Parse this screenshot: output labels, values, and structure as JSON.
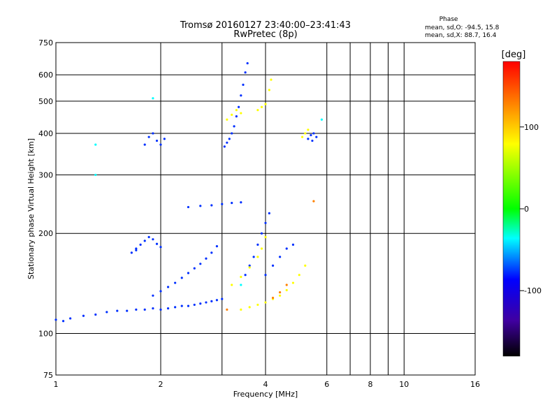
{
  "chart_data": {
    "type": "scatter",
    "title": "Tromsø 20160127 23:40:00–23:41:43",
    "subtitle": "RwPretec (8p)",
    "xlabel": "Frequency [MHz]",
    "ylabel": "Stationary phase Virtual Height [km]",
    "x_scale": "log",
    "y_scale": "log",
    "xlim": [
      1,
      16
    ],
    "ylim": [
      75,
      750
    ],
    "x_ticks": [
      1,
      2,
      4,
      6,
      8,
      10,
      16
    ],
    "y_ticks": [
      75,
      100,
      200,
      300,
      400,
      500,
      600,
      750
    ],
    "x_minor_gridlines": [
      3,
      7,
      9
    ],
    "grid": true,
    "legend": {
      "heading": "Phase",
      "lines": [
        "mean, sd,O: -94.5, 15.8",
        "mean, sd,X:  88.7, 16.4"
      ]
    },
    "colorbar": {
      "label": "[deg]",
      "range": [
        -180,
        180
      ],
      "ticks": [
        100,
        0,
        -100
      ],
      "stops": [
        "#ff0000",
        "#ff8000",
        "#ffff00",
        "#00ff00",
        "#00ffff",
        "#0000ff",
        "#4000a0",
        "#000000"
      ]
    },
    "series": [
      {
        "color": "#0030ff",
        "values": [
          [
            1.0,
            110
          ],
          [
            1.05,
            109
          ],
          [
            1.1,
            111
          ],
          [
            1.2,
            113
          ],
          [
            1.3,
            114
          ],
          [
            1.4,
            116
          ],
          [
            1.5,
            117
          ],
          [
            1.6,
            117
          ],
          [
            1.7,
            118
          ],
          [
            1.8,
            118
          ],
          [
            1.9,
            119
          ],
          [
            2.0,
            118
          ],
          [
            2.1,
            119
          ],
          [
            2.2,
            120
          ],
          [
            2.3,
            121
          ],
          [
            2.4,
            121
          ],
          [
            2.5,
            122
          ],
          [
            2.6,
            123
          ],
          [
            2.7,
            124
          ],
          [
            2.8,
            125
          ],
          [
            2.9,
            126
          ],
          [
            3.0,
            127
          ]
        ]
      },
      {
        "color": "#0030ff",
        "values": [
          [
            1.9,
            130
          ],
          [
            2.0,
            134
          ],
          [
            2.1,
            138
          ],
          [
            2.2,
            142
          ],
          [
            2.3,
            147
          ],
          [
            2.4,
            152
          ],
          [
            2.5,
            157
          ],
          [
            2.6,
            162
          ],
          [
            2.7,
            168
          ],
          [
            2.8,
            175
          ],
          [
            2.9,
            183
          ]
        ]
      },
      {
        "color": "#0030ff",
        "values": [
          [
            1.7,
            180
          ],
          [
            1.75,
            185
          ],
          [
            1.8,
            190
          ],
          [
            1.85,
            195
          ],
          [
            1.9,
            192
          ],
          [
            1.95,
            186
          ],
          [
            2.0,
            182
          ],
          [
            1.65,
            175
          ],
          [
            1.7,
            178
          ]
        ]
      },
      {
        "color": "#0030ff",
        "values": [
          [
            2.4,
            240
          ],
          [
            2.6,
            242
          ],
          [
            2.8,
            243
          ],
          [
            3.0,
            245
          ],
          [
            3.2,
            247
          ],
          [
            3.4,
            248
          ]
        ]
      },
      {
        "color": "#0030ff",
        "values": [
          [
            3.05,
            365
          ],
          [
            3.1,
            375
          ],
          [
            3.15,
            385
          ],
          [
            3.2,
            400
          ],
          [
            3.25,
            420
          ],
          [
            3.3,
            450
          ],
          [
            3.35,
            480
          ],
          [
            3.4,
            520
          ],
          [
            3.45,
            560
          ],
          [
            3.5,
            610
          ],
          [
            3.55,
            650
          ]
        ]
      },
      {
        "color": "#0030ff",
        "values": [
          [
            1.8,
            370
          ],
          [
            1.85,
            390
          ],
          [
            1.9,
            400
          ],
          [
            1.95,
            380
          ],
          [
            2.0,
            370
          ],
          [
            2.05,
            385
          ]
        ]
      },
      {
        "color": "#0030ff",
        "values": [
          [
            3.5,
            150
          ],
          [
            3.6,
            160
          ],
          [
            3.7,
            170
          ],
          [
            3.8,
            185
          ],
          [
            3.9,
            200
          ],
          [
            4.0,
            215
          ],
          [
            4.1,
            230
          ]
        ]
      },
      {
        "color": "#0030ff",
        "values": [
          [
            5.3,
            385
          ],
          [
            5.4,
            395
          ],
          [
            5.5,
            400
          ],
          [
            5.6,
            390
          ],
          [
            5.45,
            380
          ]
        ]
      },
      {
        "color": "#0030ff",
        "values": [
          [
            4.0,
            150
          ],
          [
            4.2,
            160
          ],
          [
            4.4,
            170
          ],
          [
            4.6,
            180
          ],
          [
            4.8,
            185
          ]
        ]
      },
      {
        "color": "#ffff00",
        "values": [
          [
            3.4,
            118
          ],
          [
            3.6,
            120
          ],
          [
            3.8,
            122
          ],
          [
            4.0,
            124
          ],
          [
            4.2,
            127
          ],
          [
            4.4,
            130
          ],
          [
            4.6,
            135
          ],
          [
            4.8,
            142
          ],
          [
            5.0,
            150
          ],
          [
            5.2,
            160
          ]
        ]
      },
      {
        "color": "#ffff00",
        "values": [
          [
            3.2,
            140
          ],
          [
            3.4,
            148
          ],
          [
            3.6,
            158
          ],
          [
            3.8,
            170
          ],
          [
            3.9,
            180
          ],
          [
            4.0,
            195
          ]
        ]
      },
      {
        "color": "#ffff00",
        "values": [
          [
            3.1,
            440
          ],
          [
            3.2,
            455
          ],
          [
            3.3,
            470
          ],
          [
            3.4,
            460
          ]
        ]
      },
      {
        "color": "#ffff00",
        "values": [
          [
            3.8,
            470
          ],
          [
            3.9,
            480
          ],
          [
            4.0,
            490
          ],
          [
            4.1,
            540
          ],
          [
            4.15,
            580
          ]
        ]
      },
      {
        "color": "#ffff00",
        "values": [
          [
            5.2,
            400
          ],
          [
            5.3,
            410
          ],
          [
            5.1,
            390
          ]
        ]
      },
      {
        "color": "#ff8000",
        "values": [
          [
            4.2,
            128
          ],
          [
            4.4,
            133
          ],
          [
            4.6,
            140
          ],
          [
            3.1,
            118
          ],
          [
            5.5,
            250
          ]
        ]
      },
      {
        "color": "#00ffff",
        "values": [
          [
            1.3,
            300
          ],
          [
            1.3,
            370
          ],
          [
            1.9,
            510
          ],
          [
            5.8,
            440
          ],
          [
            3.4,
            140
          ]
        ]
      }
    ]
  }
}
